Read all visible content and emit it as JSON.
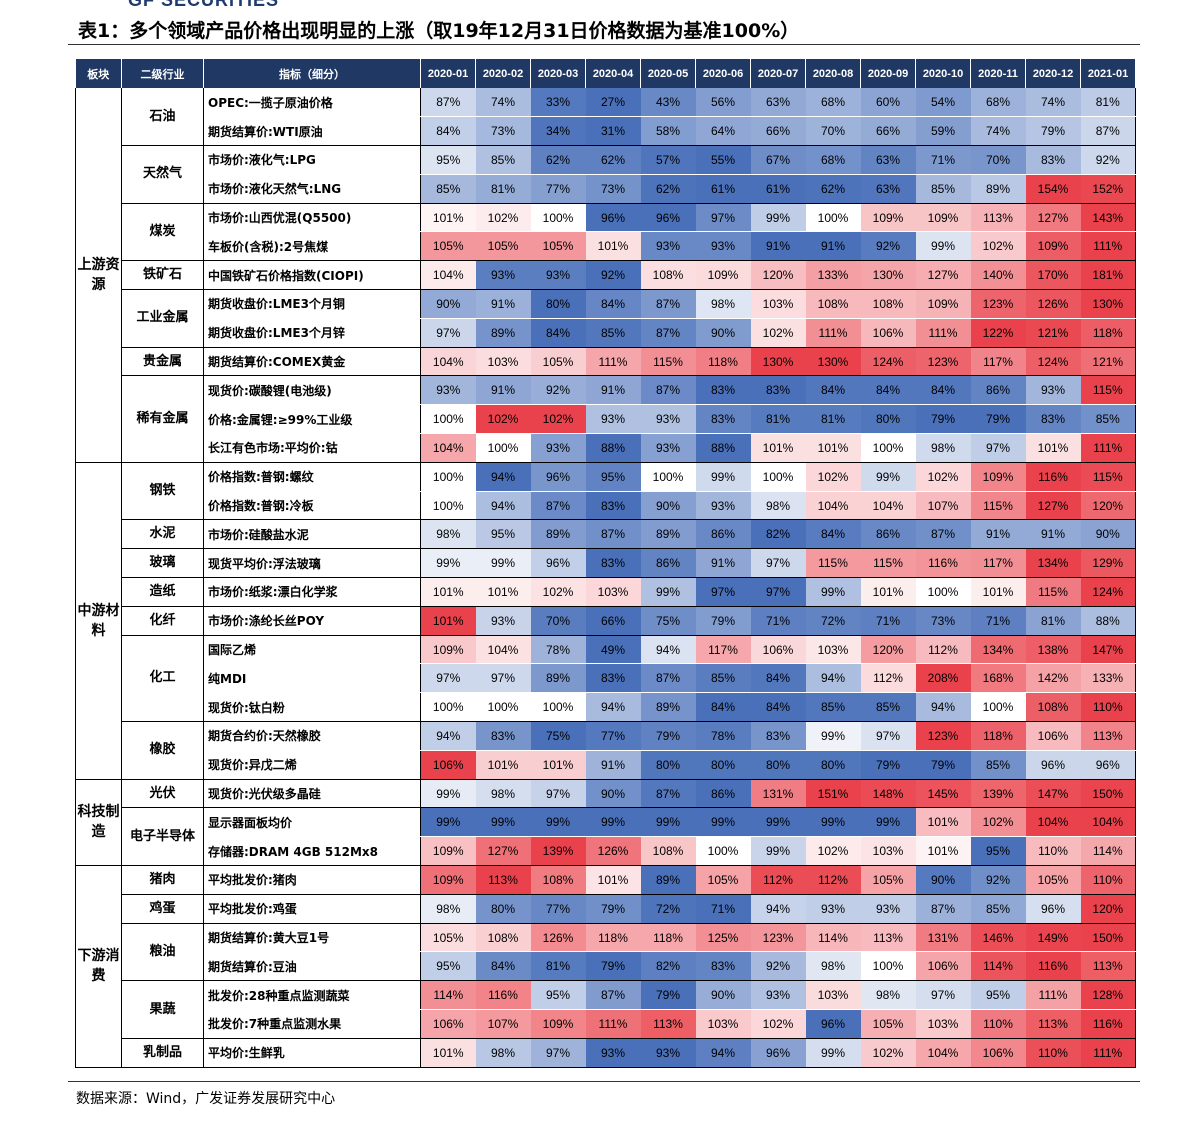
{
  "logo_text": "GF SECURITIES",
  "title": "表1：多个领域产品价格出现明显的上涨（取19年12月31日价格数据为基准100%）",
  "source": "数据来源：Wind，广发证券发展研究中心",
  "colors": {
    "header_bg": "#1f3864",
    "high": "#e8323c",
    "low": "#3a64b4",
    "base": "#ffffff"
  },
  "chart_data": {
    "type": "heatmap",
    "unit": "%",
    "baseline": 100,
    "header": {
      "sector": "板块",
      "industry": "二级行业",
      "indicator": "指标（细分）"
    },
    "months": [
      "2020-01",
      "2020-02",
      "2020-03",
      "2020-04",
      "2020-05",
      "2020-06",
      "2020-07",
      "2020-08",
      "2020-09",
      "2020-10",
      "2020-11",
      "2020-12",
      "2021-01"
    ],
    "sectors": [
      {
        "name": "上游资源",
        "industries": [
          {
            "name": "石油",
            "rows": [
              {
                "indicator": "OPEC:一揽子原油价格",
                "values": [
                  87,
                  74,
                  33,
                  27,
                  43,
                  56,
                  63,
                  68,
                  60,
                  54,
                  68,
                  74,
                  81
                ]
              },
              {
                "indicator": "期货结算价:WTI原油",
                "values": [
                  84,
                  73,
                  34,
                  31,
                  58,
                  64,
                  66,
                  70,
                  66,
                  59,
                  74,
                  79,
                  87
                ]
              }
            ]
          },
          {
            "name": "天然气",
            "rows": [
              {
                "indicator": "市场价:液化气:LPG",
                "values": [
                  95,
                  85,
                  62,
                  62,
                  57,
                  55,
                  67,
                  68,
                  63,
                  71,
                  70,
                  83,
                  92
                ]
              },
              {
                "indicator": "市场价:液化天然气:LNG",
                "values": [
                  85,
                  81,
                  77,
                  73,
                  62,
                  61,
                  61,
                  62,
                  63,
                  85,
                  89,
                  154,
                  152
                ]
              }
            ]
          },
          {
            "name": "煤炭",
            "rows": [
              {
                "indicator": "市场价:山西优混(Q5500)",
                "values": [
                  101,
                  102,
                  100,
                  96,
                  96,
                  97,
                  99,
                  100,
                  109,
                  109,
                  113,
                  127,
                  143
                ]
              },
              {
                "indicator": "车板价(含税):2号焦煤",
                "values": [
                  105,
                  105,
                  105,
                  101,
                  93,
                  93,
                  91,
                  91,
                  92,
                  99,
                  102,
                  109,
                  111
                ]
              }
            ]
          },
          {
            "name": "铁矿石",
            "rows": [
              {
                "indicator": "中国铁矿石价格指数(CIOPI)",
                "values": [
                  104,
                  93,
                  93,
                  92,
                  108,
                  109,
                  120,
                  133,
                  130,
                  127,
                  140,
                  170,
                  181
                ]
              }
            ]
          },
          {
            "name": "工业金属",
            "rows": [
              {
                "indicator": "期货收盘价:LME3个月铜",
                "values": [
                  90,
                  91,
                  80,
                  84,
                  87,
                  98,
                  103,
                  108,
                  108,
                  109,
                  123,
                  126,
                  130
                ]
              },
              {
                "indicator": "期货收盘价:LME3个月锌",
                "values": [
                  97,
                  89,
                  84,
                  85,
                  87,
                  90,
                  102,
                  111,
                  106,
                  111,
                  122,
                  121,
                  118
                ]
              }
            ]
          },
          {
            "name": "贵金属",
            "rows": [
              {
                "indicator": "期货结算价:COMEX黄金",
                "values": [
                  104,
                  103,
                  105,
                  111,
                  115,
                  118,
                  130,
                  130,
                  124,
                  123,
                  117,
                  124,
                  121
                ]
              }
            ]
          },
          {
            "name": "稀有金属",
            "rows": [
              {
                "indicator": "现货价:碳酸锂(电池级)",
                "values": [
                  93,
                  91,
                  92,
                  91,
                  87,
                  83,
                  83,
                  84,
                  84,
                  84,
                  86,
                  93,
                  115
                ]
              },
              {
                "indicator": "价格:金属锂:≥99%工业级",
                "values": [
                  100,
                  102,
                  102,
                  93,
                  93,
                  83,
                  81,
                  81,
                  80,
                  79,
                  79,
                  83,
                  85
                ]
              },
              {
                "indicator": "长江有色市场:平均价:钴",
                "values": [
                  104,
                  100,
                  93,
                  88,
                  93,
                  88,
                  101,
                  101,
                  100,
                  98,
                  97,
                  101,
                  111
                ]
              }
            ]
          }
        ]
      },
      {
        "name": "中游材料",
        "industries": [
          {
            "name": "钢铁",
            "rows": [
              {
                "indicator": "价格指数:普钢:螺纹",
                "values": [
                  100,
                  94,
                  96,
                  95,
                  100,
                  99,
                  100,
                  102,
                  99,
                  102,
                  109,
                  116,
                  115
                ]
              },
              {
                "indicator": "价格指数:普钢:冷板",
                "values": [
                  100,
                  94,
                  87,
                  83,
                  90,
                  93,
                  98,
                  104,
                  104,
                  107,
                  115,
                  127,
                  120
                ]
              }
            ]
          },
          {
            "name": "水泥",
            "rows": [
              {
                "indicator": "市场价:硅酸盐水泥",
                "values": [
                  98,
                  95,
                  89,
                  87,
                  89,
                  86,
                  82,
                  84,
                  86,
                  87,
                  91,
                  91,
                  90
                ]
              }
            ]
          },
          {
            "name": "玻璃",
            "rows": [
              {
                "indicator": "现货平均价:浮法玻璃",
                "values": [
                  99,
                  99,
                  96,
                  83,
                  86,
                  91,
                  97,
                  115,
                  115,
                  116,
                  117,
                  134,
                  129
                ]
              }
            ]
          },
          {
            "name": "造纸",
            "rows": [
              {
                "indicator": "市场价:纸浆:漂白化学浆",
                "values": [
                  101,
                  101,
                  102,
                  103,
                  99,
                  97,
                  97,
                  99,
                  101,
                  100,
                  101,
                  115,
                  124
                ]
              }
            ]
          },
          {
            "name": "化纤",
            "rows": [
              {
                "indicator": "市场价:涤纶长丝POY",
                "values": [
                  101,
                  93,
                  70,
                  66,
                  75,
                  79,
                  71,
                  72,
                  71,
                  73,
                  71,
                  81,
                  88
                ]
              }
            ]
          },
          {
            "name": "化工",
            "rows": [
              {
                "indicator": "国际乙烯",
                "values": [
                  109,
                  104,
                  78,
                  49,
                  94,
                  117,
                  106,
                  103,
                  120,
                  112,
                  134,
                  138,
                  147
                ]
              },
              {
                "indicator": "纯MDI",
                "values": [
                  97,
                  97,
                  89,
                  83,
                  87,
                  85,
                  84,
                  94,
                  112,
                  208,
                  168,
                  142,
                  133
                ]
              },
              {
                "indicator": "现货价:钛白粉",
                "values": [
                  100,
                  100,
                  100,
                  94,
                  89,
                  84,
                  84,
                  85,
                  85,
                  94,
                  100,
                  108,
                  110
                ]
              }
            ]
          },
          {
            "name": "橡胶",
            "rows": [
              {
                "indicator": "期货合约价:天然橡胶",
                "values": [
                  94,
                  83,
                  75,
                  77,
                  79,
                  78,
                  83,
                  99,
                  97,
                  123,
                  118,
                  106,
                  113
                ]
              },
              {
                "indicator": "现货价:异戊二烯",
                "values": [
                  106,
                  101,
                  101,
                  91,
                  80,
                  80,
                  80,
                  80,
                  79,
                  79,
                  85,
                  96,
                  96
                ]
              }
            ]
          }
        ]
      },
      {
        "name": "科技制造",
        "industries": [
          {
            "name": "光伏",
            "rows": [
              {
                "indicator": "现货价:光伏级多晶硅",
                "values": [
                  99,
                  98,
                  97,
                  90,
                  87,
                  86,
                  131,
                  151,
                  148,
                  145,
                  139,
                  147,
                  150
                ]
              }
            ]
          },
          {
            "name": "电子半导体",
            "rows": [
              {
                "indicator": "显示器面板均价",
                "values": [
                  99,
                  99,
                  99,
                  99,
                  99,
                  99,
                  99,
                  99,
                  99,
                  101,
                  102,
                  104,
                  104
                ]
              },
              {
                "indicator": "存储器:DRAM 4GB 512Mx8",
                "values": [
                  109,
                  127,
                  139,
                  126,
                  108,
                  100,
                  99,
                  102,
                  103,
                  101,
                  95,
                  110,
                  114
                ]
              }
            ]
          }
        ]
      },
      {
        "name": "下游消费",
        "industries": [
          {
            "name": "猪肉",
            "rows": [
              {
                "indicator": "平均批发价:猪肉",
                "values": [
                  109,
                  113,
                  108,
                  101,
                  89,
                  105,
                  112,
                  112,
                  105,
                  90,
                  92,
                  105,
                  110
                ]
              }
            ]
          },
          {
            "name": "鸡蛋",
            "rows": [
              {
                "indicator": "平均批发价:鸡蛋",
                "values": [
                  98,
                  80,
                  77,
                  79,
                  72,
                  71,
                  94,
                  93,
                  93,
                  87,
                  85,
                  96,
                  120
                ]
              }
            ]
          },
          {
            "name": "粮油",
            "rows": [
              {
                "indicator": "期货结算价:黄大豆1号",
                "values": [
                  105,
                  108,
                  126,
                  118,
                  118,
                  125,
                  123,
                  114,
                  113,
                  131,
                  146,
                  149,
                  150
                ]
              },
              {
                "indicator": "期货结算价:豆油",
                "values": [
                  95,
                  84,
                  81,
                  79,
                  82,
                  83,
                  92,
                  98,
                  100,
                  106,
                  114,
                  116,
                  113
                ]
              }
            ]
          },
          {
            "name": "果蔬",
            "rows": [
              {
                "indicator": "批发价:28种重点监测蔬菜",
                "values": [
                  114,
                  116,
                  95,
                  87,
                  79,
                  90,
                  93,
                  103,
                  98,
                  97,
                  95,
                  111,
                  128
                ]
              },
              {
                "indicator": "批发价:7种重点监测水果",
                "values": [
                  106,
                  107,
                  109,
                  111,
                  113,
                  103,
                  102,
                  96,
                  105,
                  103,
                  110,
                  113,
                  116
                ]
              }
            ]
          },
          {
            "name": "乳制品",
            "rows": [
              {
                "indicator": "平均价:生鲜乳",
                "values": [
                  101,
                  98,
                  97,
                  93,
                  93,
                  94,
                  96,
                  99,
                  102,
                  104,
                  106,
                  110,
                  111
                ]
              }
            ]
          }
        ]
      }
    ]
  }
}
